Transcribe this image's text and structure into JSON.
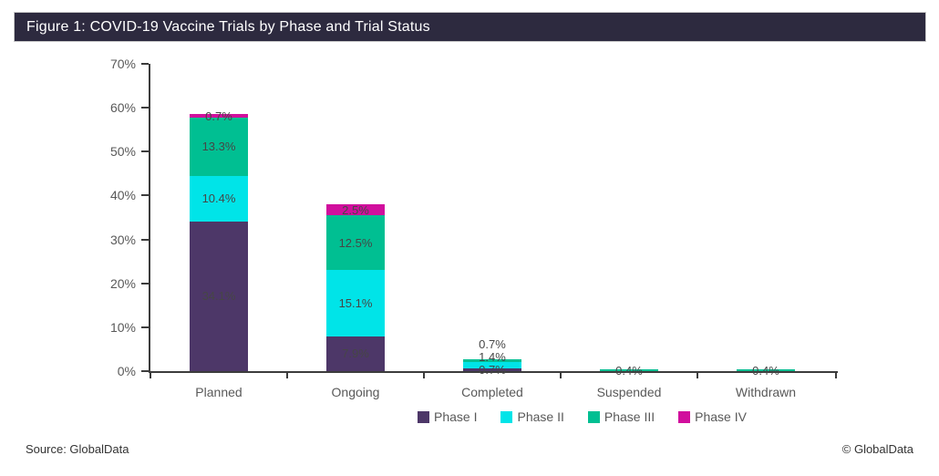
{
  "header": {
    "title": "Figure 1: COVID-19 Vaccine Trials by Phase and Trial Status"
  },
  "chart_data": {
    "type": "bar",
    "stacked": true,
    "title": "Figure 1: COVID-19 Vaccine Trials by Phase and Trial Status",
    "categories": [
      "Planned",
      "Ongoing",
      "Completed",
      "Suspended",
      "Withdrawn"
    ],
    "series": [
      {
        "name": "Phase I",
        "color": "#4D3768",
        "values": [
          34.1,
          7.9,
          0.7,
          0,
          0
        ]
      },
      {
        "name": "Phase II",
        "color": "#00E4E8",
        "values": [
          10.4,
          15.1,
          1.4,
          0,
          0
        ]
      },
      {
        "name": "Phase III",
        "color": "#00BF92",
        "values": [
          13.3,
          12.5,
          0.7,
          0.4,
          0.4
        ]
      },
      {
        "name": "Phase IV",
        "color": "#D10F9D",
        "values": [
          0.7,
          2.5,
          0,
          0,
          0
        ]
      }
    ],
    "xlabel": "",
    "ylabel": "",
    "ylim": [
      0,
      70
    ],
    "ytick_step": 10,
    "ytick_format": "percent",
    "data_label_format": "0.0%",
    "grid": false,
    "legend_position": "bottom",
    "totals": {
      "Planned": 58.5,
      "Ongoing": 38.0,
      "Completed": 2.8,
      "Suspended": 0.4,
      "Withdrawn": 0.4
    }
  },
  "footer": {
    "source": "Source: GlobalData",
    "copyright": "© GlobalData"
  }
}
